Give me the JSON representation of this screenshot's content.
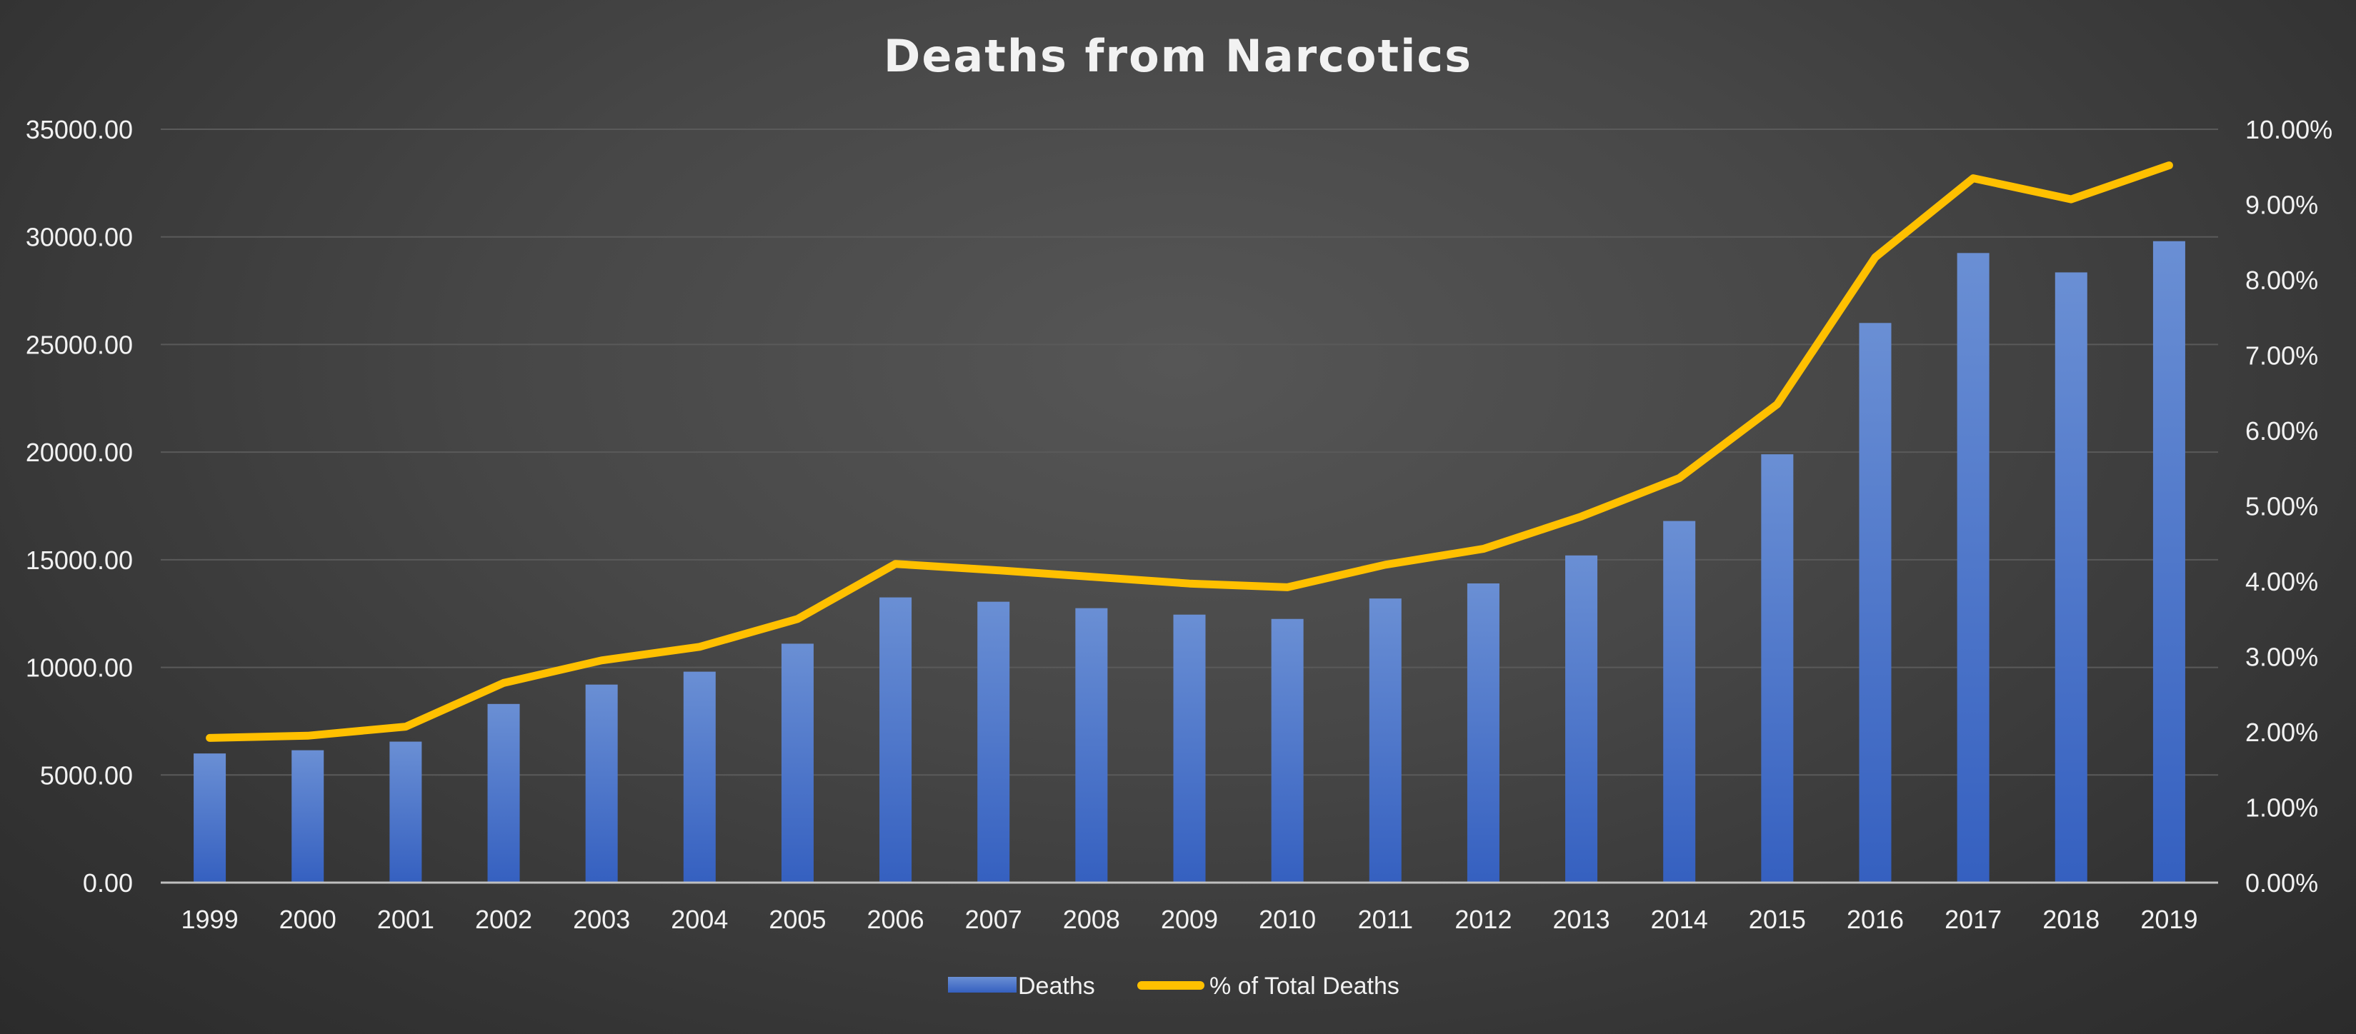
{
  "chart_data": {
    "type": "bar",
    "title": "Deaths from Narcotics",
    "categories": [
      "1999",
      "2000",
      "2001",
      "2002",
      "2003",
      "2004",
      "2005",
      "2006",
      "2007",
      "2008",
      "2009",
      "2010",
      "2011",
      "2012",
      "2013",
      "2014",
      "2015",
      "2016",
      "2017",
      "2018",
      "2019"
    ],
    "series": [
      {
        "name": "Deaths",
        "type": "bar",
        "axis": "left",
        "color": "#4472C4",
        "values": [
          6000,
          6150,
          6550,
          8300,
          9200,
          9800,
          11100,
          13250,
          13050,
          12750,
          12450,
          12250,
          13200,
          13900,
          15200,
          16800,
          19900,
          26000,
          29250,
          28350,
          29800
        ]
      },
      {
        "name": "% of Total Deaths",
        "type": "line",
        "axis": "right",
        "color": "#FFC000",
        "values": [
          1.92,
          1.95,
          2.07,
          2.65,
          2.95,
          3.13,
          3.5,
          4.23,
          4.15,
          4.06,
          3.97,
          3.92,
          4.22,
          4.43,
          4.86,
          5.37,
          6.35,
          8.3,
          9.35,
          9.07,
          9.52
        ]
      }
    ],
    "yleft": {
      "ylim": [
        0,
        35000
      ],
      "ticks": [
        0,
        5000,
        10000,
        15000,
        20000,
        25000,
        30000,
        35000
      ],
      "tick_labels": [
        "0.00",
        "5000.00",
        "10000.00",
        "15000.00",
        "20000.00",
        "25000.00",
        "30000.00",
        "35000.00"
      ]
    },
    "yright": {
      "ylim": [
        0,
        10
      ],
      "ticks": [
        0,
        1,
        2,
        3,
        4,
        5,
        6,
        7,
        8,
        9,
        10
      ],
      "tick_labels": [
        "0.00%",
        "1.00%",
        "2.00%",
        "3.00%",
        "4.00%",
        "5.00%",
        "6.00%",
        "7.00%",
        "8.00%",
        "9.00%",
        "10.00%"
      ]
    },
    "grid": true,
    "legend": "bottom-center",
    "colors": {
      "text": "#F2F2F2",
      "gridline": "#5a5a5a",
      "axis_line": "#bfbfbf"
    }
  }
}
